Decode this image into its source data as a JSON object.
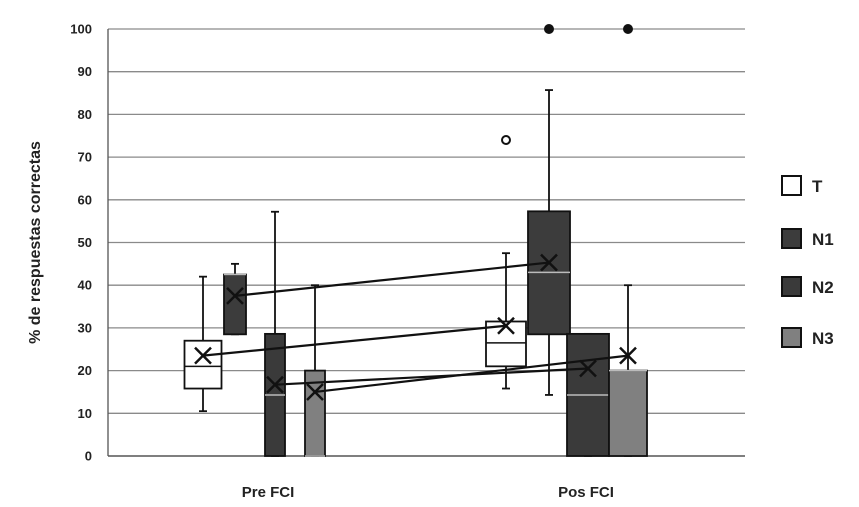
{
  "chart_data": {
    "type": "boxplot",
    "title": "",
    "xlabel": "",
    "ylabel": "% de respuestas correctas",
    "ylim": [
      0,
      100
    ],
    "yticks": [
      0,
      10,
      20,
      30,
      40,
      50,
      60,
      70,
      80,
      90,
      100
    ],
    "grid": true,
    "legend_position": "right",
    "categories": [
      "Pre FCI",
      "Pos FCI"
    ],
    "series": [
      {
        "name": "T",
        "color": "#ffffff",
        "boxes": [
          {
            "category": "Pre FCI",
            "min": 10.5,
            "q1": 15.8,
            "median": 21,
            "q3": 27,
            "max": 42,
            "mean": 23.5,
            "outliers": []
          },
          {
            "category": "Pos FCI",
            "min": 15.8,
            "q1": 21,
            "median": 26.5,
            "q3": 31.5,
            "max": 47.5,
            "mean": 30.5,
            "outliers": [
              74
            ]
          }
        ]
      },
      {
        "name": "N1",
        "color": "#3c3c3c",
        "boxes": [
          {
            "category": "Pre FCI",
            "min": 28.5,
            "q1": 28.5,
            "median": 42.5,
            "q3": 42.5,
            "max": 45,
            "mean": 37.5,
            "outliers": []
          },
          {
            "category": "Pos FCI",
            "min": 14.3,
            "q1": 28.5,
            "median": 43,
            "q3": 57.3,
            "max": 85.7,
            "mean": 45.3,
            "outliers": [
              100
            ]
          }
        ]
      },
      {
        "name": "N2",
        "color": "#3a3a3a",
        "boxes": [
          {
            "category": "Pre FCI",
            "min": 0,
            "q1": 0,
            "median": 14.3,
            "q3": 28.6,
            "max": 57.2,
            "mean": 16.7,
            "outliers": []
          },
          {
            "category": "Pos FCI",
            "min": 0,
            "q1": 0,
            "median": 14.3,
            "q3": 28.6,
            "max": 28.6,
            "mean": 20.5,
            "outliers": []
          }
        ]
      },
      {
        "name": "N3",
        "color": "#808080",
        "boxes": [
          {
            "category": "Pre FCI",
            "min": 0,
            "q1": 0,
            "median": 0,
            "q3": 20,
            "max": 40,
            "mean": 15,
            "outliers": []
          },
          {
            "category": "Pos FCI",
            "min": 0,
            "q1": 0,
            "median": 20,
            "q3": 20,
            "max": 40,
            "mean": 23.5,
            "outliers": [
              100
            ]
          }
        ]
      }
    ]
  }
}
